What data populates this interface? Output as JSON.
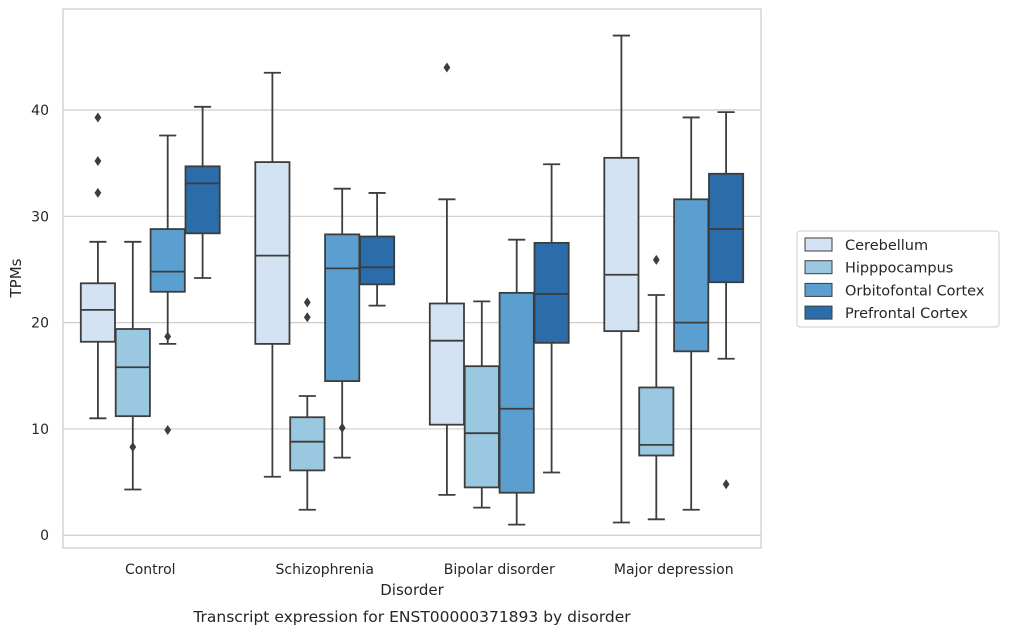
{
  "chart_data": {
    "type": "box",
    "caption": "Transcript expression for ENST00000371893 by disorder",
    "xlabel": "Disorder",
    "ylabel": "TPMs",
    "ylim": [
      -1.2,
      49.5
    ],
    "yticks": [
      0,
      10,
      20,
      30,
      40
    ],
    "grid": "horizontal",
    "legend_position": "right",
    "categories": [
      "Control",
      "Schizophrenia",
      "Bipolar disorder",
      "Major depression"
    ],
    "series": [
      {
        "name": "Cerebellum",
        "color": "#d3e3f3",
        "boxes": [
          {
            "whislo": 11.0,
            "q1": 18.2,
            "med": 21.2,
            "q3": 23.7,
            "whishi": 27.6,
            "fliers": [
              32.2,
              35.2,
              39.3
            ]
          },
          {
            "whislo": 5.5,
            "q1": 18.0,
            "med": 26.3,
            "q3": 35.1,
            "whishi": 43.5,
            "fliers": []
          },
          {
            "whislo": 3.8,
            "q1": 10.4,
            "med": 18.3,
            "q3": 21.8,
            "whishi": 31.6,
            "fliers": [
              44.0
            ]
          },
          {
            "whislo": 1.2,
            "q1": 19.2,
            "med": 24.5,
            "q3": 35.5,
            "whishi": 47.0,
            "fliers": []
          }
        ]
      },
      {
        "name": "Hipppocampus",
        "color": "#9ac8e0",
        "boxes": [
          {
            "whislo": 4.3,
            "q1": 11.2,
            "med": 15.8,
            "q3": 19.4,
            "whishi": 27.6,
            "fliers": [
              8.3
            ]
          },
          {
            "whislo": 2.4,
            "q1": 6.1,
            "med": 8.8,
            "q3": 11.1,
            "whishi": 13.1,
            "fliers": [
              20.5,
              21.9
            ]
          },
          {
            "whislo": 2.6,
            "q1": 4.5,
            "med": 9.6,
            "q3": 15.9,
            "whishi": 22.0,
            "fliers": []
          },
          {
            "whislo": 1.5,
            "q1": 7.5,
            "med": 8.5,
            "q3": 13.9,
            "whishi": 22.6,
            "fliers": [
              25.9
            ]
          }
        ]
      },
      {
        "name": "Orbitofontal Cortex",
        "color": "#5a9fcf",
        "boxes": [
          {
            "whislo": 18.0,
            "q1": 22.9,
            "med": 24.8,
            "q3": 28.8,
            "whishi": 37.6,
            "fliers": [
              18.7,
              9.9
            ]
          },
          {
            "whislo": 7.3,
            "q1": 14.5,
            "med": 25.1,
            "q3": 28.3,
            "whishi": 32.6,
            "fliers": [
              10.1
            ]
          },
          {
            "whislo": 1.0,
            "q1": 4.0,
            "med": 11.9,
            "q3": 22.8,
            "whishi": 27.8,
            "fliers": []
          },
          {
            "whislo": 2.4,
            "q1": 17.3,
            "med": 20.0,
            "q3": 31.6,
            "whishi": 39.3,
            "fliers": []
          }
        ]
      },
      {
        "name": "Prefrontal Cortex",
        "color": "#2b6dab",
        "boxes": [
          {
            "whislo": 24.2,
            "q1": 28.4,
            "med": 33.1,
            "q3": 34.7,
            "whishi": 40.3,
            "fliers": []
          },
          {
            "whislo": 21.6,
            "q1": 23.6,
            "med": 25.2,
            "q3": 28.1,
            "whishi": 32.2,
            "fliers": []
          },
          {
            "whislo": 5.9,
            "q1": 18.1,
            "med": 22.7,
            "q3": 27.5,
            "whishi": 34.9,
            "fliers": []
          },
          {
            "whislo": 16.6,
            "q1": 23.8,
            "med": 28.8,
            "q3": 34.0,
            "whishi": 39.8,
            "fliers": [
              4.8
            ]
          }
        ]
      }
    ]
  }
}
